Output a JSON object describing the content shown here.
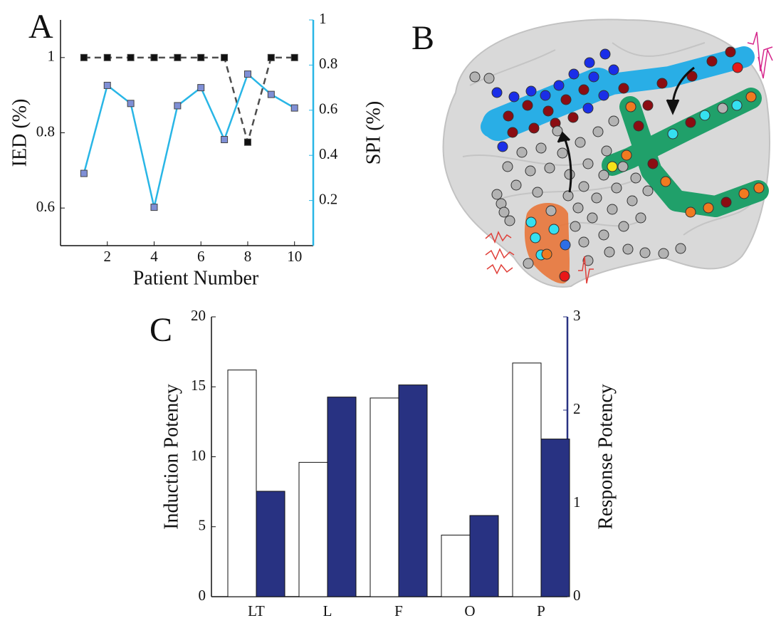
{
  "chart_data": [
    {
      "panel": "A",
      "type": "line",
      "xlabel": "Patient Number",
      "ylabel": "IED (%)",
      "y2label": "SPI (%)",
      "x": [
        1,
        2,
        3,
        4,
        5,
        6,
        7,
        8,
        9,
        10
      ],
      "xlim": [
        0,
        10.8
      ],
      "xticks": [
        2,
        4,
        6,
        8,
        10
      ],
      "ylim": [
        0.5,
        1.1
      ],
      "yticks": [
        0.6,
        0.8,
        1
      ],
      "y2lim": [
        0,
        1
      ],
      "y2ticks": [
        0.2,
        0.4,
        0.6,
        0.8,
        1
      ],
      "series": [
        {
          "color": "#4d4d4d",
          "linestyle": "dashed",
          "marker_color": "#111111",
          "values": [
            1,
            1,
            1,
            1,
            1,
            1,
            1,
            0.775,
            1,
            1
          ]
        },
        {
          "color": "#29b6e6",
          "linestyle": "solid",
          "marker_color": "#7f8fd6",
          "axis": "y2",
          "values": [
            0.32,
            0.71,
            0.63,
            0.17,
            0.62,
            0.7,
            0.47,
            0.76,
            0.67,
            0.61
          ]
        }
      ]
    },
    {
      "panel": "C",
      "type": "bar",
      "ylabel": "Induction Potency",
      "y2label": "Response Potency",
      "categories": [
        "LT",
        "L",
        "F",
        "O",
        "P"
      ],
      "ylim": [
        0,
        20
      ],
      "yticks": [
        0,
        5,
        10,
        15,
        20
      ],
      "y2lim": [
        0,
        3
      ],
      "y2ticks": [
        0,
        1,
        2,
        3
      ],
      "series": [
        {
          "color": "#ffffff",
          "values": [
            16.2,
            9.6,
            14.2,
            4.4,
            16.7
          ]
        },
        {
          "color": "#283282",
          "axis": "y2",
          "values": [
            1.13,
            2.14,
            2.27,
            0.87,
            1.69
          ]
        }
      ]
    }
  ],
  "illustration": {
    "panel": "B"
  }
}
